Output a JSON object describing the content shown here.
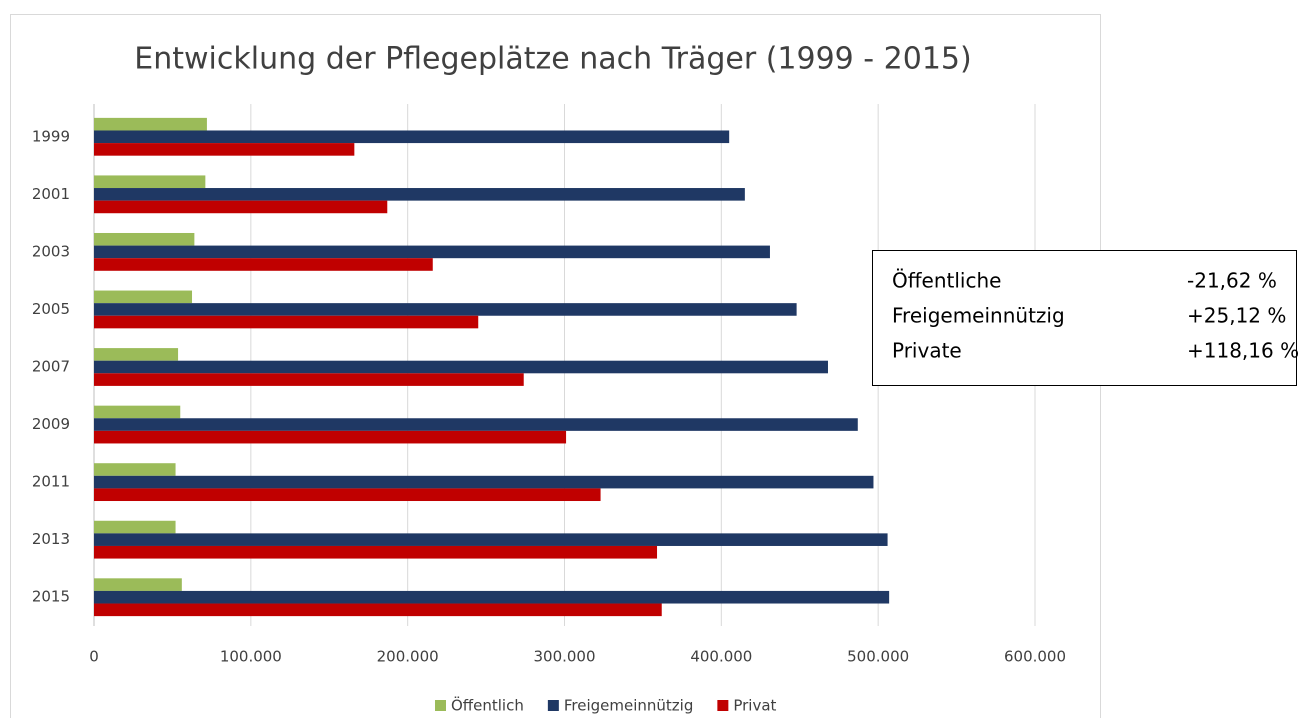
{
  "chart_data": {
    "type": "bar",
    "orientation": "horizontal",
    "title": "Entwicklung der Pflegeplätze nach Träger (1999 - 2015)",
    "categories": [
      "1999",
      "2001",
      "2003",
      "2005",
      "2007",
      "2009",
      "2011",
      "2013",
      "2015"
    ],
    "series": [
      {
        "name": "Öffentlich",
        "color": "#9bbb59",
        "values": [
          72000,
          71000,
          64000,
          62500,
          53600,
          55000,
          52000,
          52000,
          56000
        ]
      },
      {
        "name": "Freigemeinnützig",
        "color": "#1f3864",
        "values": [
          405000,
          415000,
          431000,
          448000,
          468000,
          487000,
          497000,
          506000,
          507000
        ]
      },
      {
        "name": "Privat",
        "color": "#c00000",
        "values": [
          166000,
          187000,
          216000,
          245000,
          274000,
          301000,
          323000,
          359000,
          362000
        ]
      }
    ],
    "xlim": [
      0,
      600000
    ],
    "xticks": [
      0,
      {
        "value": 100000,
        "label": "100.000"
      },
      {
        "value": 200000,
        "label": "200.000"
      },
      {
        "value": 300000,
        "label": "300.000"
      },
      {
        "value": 400000,
        "label": "400.000"
      },
      {
        "value": 500000,
        "label": "500.000"
      },
      {
        "value": 600000,
        "label": "600.000"
      }
    ],
    "grid": true,
    "legend": "bottom",
    "annotations": [
      {
        "label": "Öffentliche",
        "value": "-21,62 %"
      },
      {
        "label": "Freigemeinnützig",
        "value": "+25,12 %"
      },
      {
        "label": "Private",
        "value": "+118,16 %"
      }
    ]
  }
}
